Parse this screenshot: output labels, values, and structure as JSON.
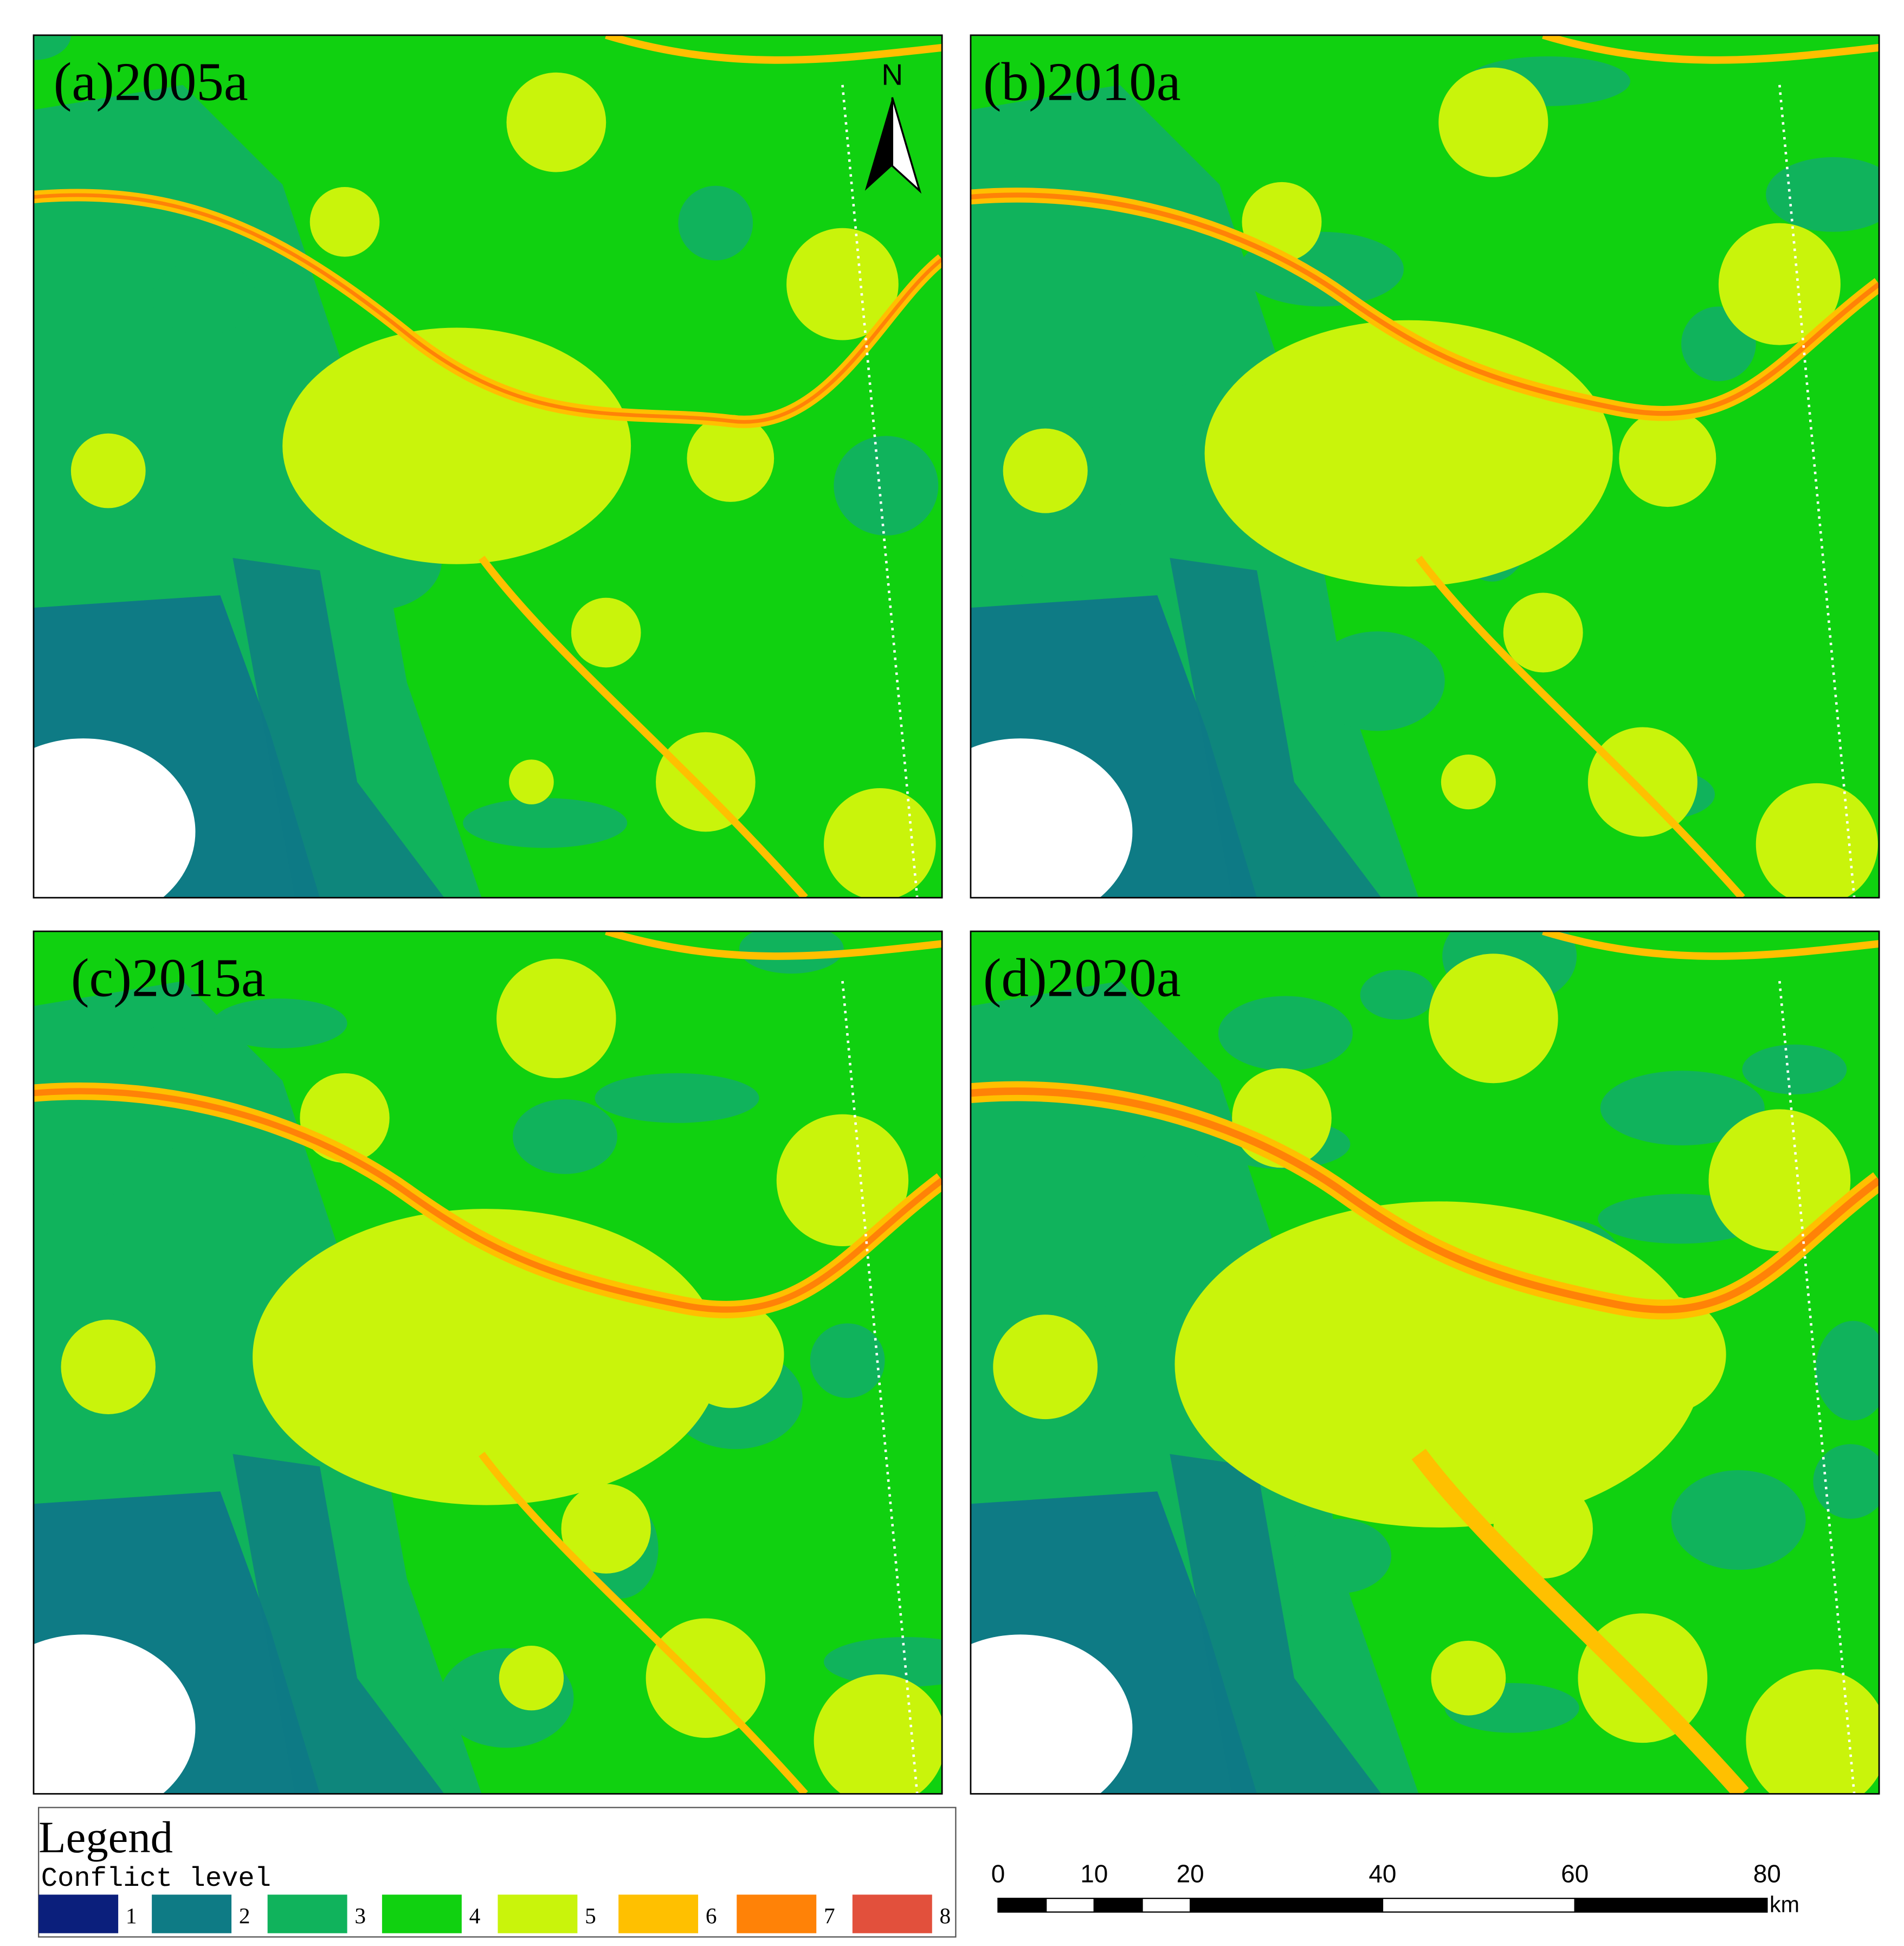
{
  "panels": [
    {
      "title": "(a)2005a"
    },
    {
      "title": "(b)2010a"
    },
    {
      "title": "(c)2015a"
    },
    {
      "title": "(d)2020a"
    }
  ],
  "north_label": "N",
  "legend": {
    "title": "Legend",
    "subtitle": "Conflict level",
    "items": [
      {
        "label": "1",
        "color": "#0b1f7c"
      },
      {
        "label": "2",
        "color": "#0e7b85"
      },
      {
        "label": "3",
        "color": "#10b35c"
      },
      {
        "label": "4",
        "color": "#10d110"
      },
      {
        "label": "5",
        "color": "#c9f40b"
      },
      {
        "label": "6",
        "color": "#ffc000"
      },
      {
        "label": "7",
        "color": "#ff8207"
      },
      {
        "label": "8",
        "color": "#e2503c"
      }
    ]
  },
  "scale_bar": {
    "labels": [
      0,
      10,
      20,
      40,
      60,
      80
    ],
    "unit": "km"
  }
}
